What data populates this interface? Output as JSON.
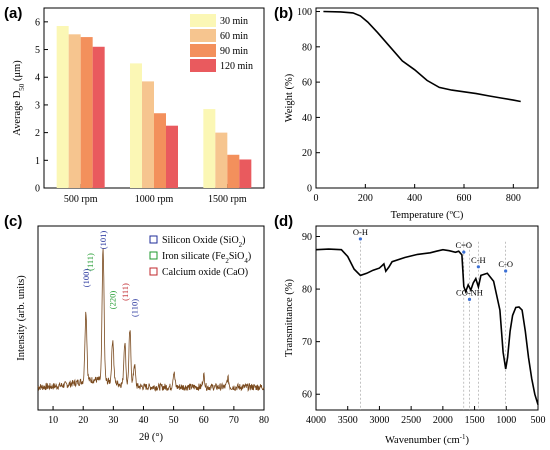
{
  "chart_data": [
    {
      "panel": "(a)",
      "type": "bar",
      "categories": [
        "500 rpm",
        "1000 rpm",
        "1500 rpm"
      ],
      "series": [
        {
          "name": "30 min",
          "color": "#fbf7b5",
          "values": [
            5.85,
            4.5,
            2.85
          ]
        },
        {
          "name": "60 min",
          "color": "#f6c58f",
          "values": [
            5.55,
            3.85,
            2.0
          ]
        },
        {
          "name": "90 min",
          "color": "#f3905c",
          "values": [
            5.45,
            2.7,
            1.2
          ]
        },
        {
          "name": "120 min",
          "color": "#e95a5e",
          "values": [
            5.1,
            2.25,
            1.03
          ]
        }
      ],
      "ylabel": "Average D",
      "ylabel_sub": "50",
      "ylabel_unit": " (μm)",
      "ylim": [
        0,
        6.5
      ],
      "yticks": [
        "0",
        "1",
        "2",
        "3",
        "4",
        "5",
        "6"
      ],
      "legend": "top-right"
    },
    {
      "panel": "(b)",
      "type": "line",
      "xlabel": "Temperature (ºC)",
      "ylabel": "Weight (%)",
      "xlim": [
        0,
        900
      ],
      "ylim": [
        0,
        102
      ],
      "xticks": [
        "0",
        "200",
        "400",
        "600",
        "800"
      ],
      "yticks": [
        "0",
        "20",
        "40",
        "60",
        "80",
        "100"
      ],
      "points": [
        [
          30,
          100
        ],
        [
          100,
          99.8
        ],
        [
          150,
          99.2
        ],
        [
          180,
          97.5
        ],
        [
          210,
          94
        ],
        [
          250,
          88
        ],
        [
          300,
          80
        ],
        [
          350,
          72
        ],
        [
          400,
          67
        ],
        [
          450,
          61
        ],
        [
          500,
          57
        ],
        [
          550,
          55.5
        ],
        [
          600,
          54.5
        ],
        [
          650,
          53.5
        ],
        [
          700,
          52.2
        ],
        [
          750,
          51
        ],
        [
          800,
          49.8
        ],
        [
          830,
          49
        ]
      ],
      "color": "#000000"
    },
    {
      "panel": "(c)",
      "type": "line",
      "xlabel": "2θ (°)",
      "ylabel": "Intensity (arb. units)",
      "xlim": [
        5,
        80
      ],
      "xticks": [
        "10",
        "20",
        "30",
        "40",
        "50",
        "60",
        "70",
        "80"
      ],
      "color": "#7a4a1e",
      "legend": [
        {
          "label": "Silicon Oxide (SiO",
          "sub": "2",
          "tail": ")",
          "color": "#1f2d9a"
        },
        {
          "label": "Iron silicate (Fe",
          "sub": "2",
          "mid": "SiO",
          "sub2": "4",
          "tail": ")",
          "color": "#1e9a2d"
        },
        {
          "label": "Calcium oxide (CaO)",
          "sub": "",
          "tail": "",
          "color": "#c0282d"
        }
      ],
      "annotations": [
        {
          "text": "(101)",
          "x": 26.6,
          "color": "#1f2d9a"
        },
        {
          "text": "(100)",
          "x": 20.9,
          "color": "#1f2d9a"
        },
        {
          "text": "(111)",
          "x": 22.3,
          "color": "#1e9a2d"
        },
        {
          "text": "(220)",
          "x": 29.8,
          "color": "#1e9a2d"
        },
        {
          "text": "(111)",
          "x": 33.8,
          "color": "#c0282d"
        },
        {
          "text": "(110)",
          "x": 37.0,
          "color": "#1f2d9a"
        }
      ],
      "peaks": [
        [
          20.9,
          0.48
        ],
        [
          26.6,
          0.92
        ],
        [
          29.8,
          0.3
        ],
        [
          33.8,
          0.3
        ],
        [
          35.5,
          0.38
        ],
        [
          37.0,
          0.15
        ],
        [
          50.1,
          0.1
        ],
        [
          60.0,
          0.08
        ],
        [
          68.0,
          0.06
        ]
      ]
    },
    {
      "panel": "(d)",
      "type": "line",
      "xlabel": "Wavenumber (cm",
      "xlabel_sup": "-1",
      "xlabel_tail": ")",
      "ylabel": "Transmittance (%)",
      "xlim": [
        4000,
        500
      ],
      "ylim": [
        57,
        92
      ],
      "xticks": [
        "4000",
        "3500",
        "3000",
        "2500",
        "2000",
        "1500",
        "1000",
        "500"
      ],
      "yticks": [
        "60",
        "70",
        "80",
        "90"
      ],
      "color": "#000000",
      "points": [
        [
          4000,
          87.5
        ],
        [
          3800,
          87.6
        ],
        [
          3600,
          87.5
        ],
        [
          3500,
          86.2
        ],
        [
          3400,
          83.8
        ],
        [
          3300,
          82.6
        ],
        [
          3200,
          83.0
        ],
        [
          3100,
          83.6
        ],
        [
          3000,
          84.0
        ],
        [
          2930,
          84.8
        ],
        [
          2900,
          83.4
        ],
        [
          2850,
          84.2
        ],
        [
          2800,
          85.2
        ],
        [
          2600,
          86.0
        ],
        [
          2400,
          86.6
        ],
        [
          2200,
          86.9
        ],
        [
          2100,
          87.2
        ],
        [
          2000,
          87.5
        ],
        [
          1900,
          87.3
        ],
        [
          1800,
          87.0
        ],
        [
          1750,
          87.2
        ],
        [
          1700,
          86.5
        ],
        [
          1670,
          80.5
        ],
        [
          1640,
          79.5
        ],
        [
          1600,
          80.8
        ],
        [
          1560,
          79.8
        ],
        [
          1520,
          81.2
        ],
        [
          1480,
          82.0
        ],
        [
          1440,
          80.4
        ],
        [
          1400,
          82.6
        ],
        [
          1300,
          83.0
        ],
        [
          1200,
          81.5
        ],
        [
          1100,
          76.0
        ],
        [
          1050,
          68.0
        ],
        [
          1010,
          64.8
        ],
        [
          980,
          67.0
        ],
        [
          940,
          72.0
        ],
        [
          900,
          75.0
        ],
        [
          850,
          76.5
        ],
        [
          800,
          76.6
        ],
        [
          750,
          76.0
        ],
        [
          700,
          72.0
        ],
        [
          650,
          67.0
        ],
        [
          600,
          63.0
        ],
        [
          550,
          60.0
        ],
        [
          500,
          58.0
        ]
      ],
      "annotations": [
        {
          "text": "O-H",
          "x": 3300,
          "y": 90.3
        },
        {
          "text": "C=O",
          "x": 1670,
          "y": 87.8
        },
        {
          "text": "C-H",
          "x": 1440,
          "y": 85.0
        },
        {
          "text": "C-O",
          "x": 1010,
          "y": 84.2
        },
        {
          "text": "CO-NH",
          "x": 1580,
          "y": 78.8
        }
      ]
    }
  ]
}
